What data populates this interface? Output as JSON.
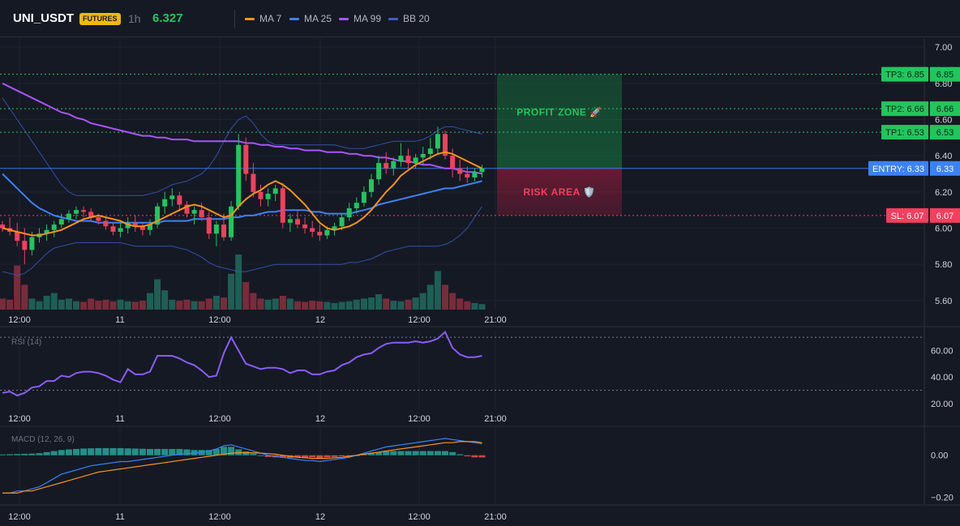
{
  "header": {
    "symbol": "UNI_USDT",
    "badge": "FUTURES",
    "interval": "1h",
    "last_price": "6.327",
    "legend": [
      {
        "label": "MA 7",
        "color": "#f7931a"
      },
      {
        "label": "MA 25",
        "color": "#3b82f6"
      },
      {
        "label": "MA 99",
        "color": "#a855f7"
      },
      {
        "label": "BB 20",
        "color": "#3b5fc4"
      }
    ]
  },
  "colors": {
    "up": "#22c55e",
    "down": "#f43f5e",
    "ma7": "#f7931a",
    "ma25": "#3b82f6",
    "ma99": "#a855f7",
    "bb": "#3b5fc4",
    "rsi": "#8b5cf6",
    "macd": "#3b82f6",
    "signal": "#f7931a",
    "tp": "#22c55e",
    "entry": "#3b82f6",
    "sl": "#f43f5e"
  },
  "time_axis": [
    "12:00",
    "11",
    "12:00",
    "12",
    "12:00",
    "21:00"
  ],
  "price_axis": {
    "ylim": [
      5.55,
      7.05
    ],
    "ticks": [
      "7.00",
      "6.80",
      "6.60",
      "6.40",
      "6.20",
      "6.00",
      "5.80",
      "5.60"
    ]
  },
  "rsi_axis": {
    "title": "RSI (14)",
    "ticks": [
      "60.00",
      "40.00",
      "20.00"
    ]
  },
  "macd_axis": {
    "title": "MACD (12, 26, 9)",
    "ticks": [
      "0.00",
      "−0.20"
    ]
  },
  "zones": {
    "profit_label": "PROFIT ZONE 🚀",
    "risk_label": "RISK AREA 🛡️"
  },
  "levels": [
    {
      "label": "TP3: 6.85",
      "value": 6.85,
      "tag": "6.85",
      "kind": "tp"
    },
    {
      "label": "TP2: 6.66",
      "value": 6.66,
      "tag": "6.66",
      "kind": "tp"
    },
    {
      "label": "TP1: 6.53",
      "value": 6.53,
      "tag": "6.53",
      "kind": "tp"
    },
    {
      "label": "ENTRY: 6.33",
      "value": 6.33,
      "tag": "6.33",
      "kind": "entry"
    },
    {
      "label": "SL: 6.07",
      "value": 6.07,
      "tag": "6.07",
      "kind": "sl"
    }
  ],
  "chart_data": [
    {
      "type": "candlestick",
      "title": "UNI_USDT",
      "x_ticks": [
        "12:00",
        "11",
        "12:00",
        "12",
        "12:00",
        "21:00"
      ],
      "ylim": [
        5.55,
        7.05
      ],
      "ohlc": [
        [
          6.02,
          6.04,
          5.98,
          6.0
        ],
        [
          6.0,
          6.06,
          5.96,
          5.98
        ],
        [
          5.98,
          6.03,
          5.9,
          5.93
        ],
        [
          5.93,
          6.0,
          5.8,
          5.88
        ],
        [
          5.88,
          5.98,
          5.85,
          5.95
        ],
        [
          5.95,
          6.0,
          5.92,
          5.97
        ],
        [
          5.97,
          6.02,
          5.93,
          5.99
        ],
        [
          5.99,
          6.04,
          5.95,
          6.02
        ],
        [
          6.02,
          6.08,
          6.0,
          6.05
        ],
        [
          6.05,
          6.1,
          6.03,
          6.08
        ],
        [
          6.08,
          6.12,
          6.05,
          6.1
        ],
        [
          6.1,
          6.12,
          6.06,
          6.09
        ],
        [
          6.09,
          6.11,
          6.04,
          6.06
        ],
        [
          6.06,
          6.08,
          6.02,
          6.04
        ],
        [
          6.04,
          6.06,
          5.99,
          6.01
        ],
        [
          6.01,
          6.03,
          5.96,
          5.98
        ],
        [
          5.98,
          6.03,
          5.95,
          6.0
        ],
        [
          6.0,
          6.06,
          5.97,
          6.03
        ],
        [
          6.03,
          6.07,
          5.98,
          6.01
        ],
        [
          6.01,
          6.03,
          5.96,
          5.99
        ],
        [
          5.99,
          6.05,
          5.96,
          6.02
        ],
        [
          6.02,
          6.14,
          6.0,
          6.12
        ],
        [
          6.12,
          6.2,
          6.08,
          6.16
        ],
        [
          6.16,
          6.22,
          6.12,
          6.18
        ],
        [
          6.18,
          6.2,
          6.1,
          6.13
        ],
        [
          6.13,
          6.15,
          6.06,
          6.08
        ],
        [
          6.08,
          6.12,
          6.02,
          6.1
        ],
        [
          6.1,
          6.14,
          6.04,
          6.06
        ],
        [
          6.06,
          6.09,
          5.94,
          5.97
        ],
        [
          5.97,
          6.04,
          5.9,
          6.02
        ],
        [
          6.02,
          6.08,
          5.93,
          5.95
        ],
        [
          5.95,
          6.15,
          5.93,
          6.12
        ],
        [
          6.12,
          6.52,
          6.1,
          6.46
        ],
        [
          6.46,
          6.5,
          6.26,
          6.3
        ],
        [
          6.3,
          6.36,
          6.17,
          6.2
        ],
        [
          6.2,
          6.24,
          6.12,
          6.16
        ],
        [
          6.16,
          6.22,
          6.12,
          6.19
        ],
        [
          6.19,
          6.24,
          6.15,
          6.22
        ],
        [
          6.22,
          6.25,
          6.0,
          6.03
        ],
        [
          6.03,
          6.08,
          5.98,
          6.05
        ],
        [
          6.05,
          6.1,
          6.0,
          6.02
        ],
        [
          6.02,
          6.06,
          5.97,
          6.0
        ],
        [
          6.0,
          6.04,
          5.95,
          5.98
        ],
        [
          5.98,
          6.02,
          5.93,
          5.96
        ],
        [
          5.96,
          6.01,
          5.94,
          5.99
        ],
        [
          5.99,
          6.03,
          5.96,
          6.01
        ],
        [
          6.01,
          6.08,
          5.99,
          6.06
        ],
        [
          6.06,
          6.14,
          6.04,
          6.11
        ],
        [
          6.11,
          6.17,
          6.08,
          6.14
        ],
        [
          6.14,
          6.23,
          6.12,
          6.2
        ],
        [
          6.2,
          6.3,
          6.17,
          6.27
        ],
        [
          6.27,
          6.4,
          6.24,
          6.36
        ],
        [
          6.36,
          6.42,
          6.3,
          6.33
        ],
        [
          6.33,
          6.39,
          6.29,
          6.37
        ],
        [
          6.37,
          6.47,
          6.34,
          6.4
        ],
        [
          6.4,
          6.44,
          6.33,
          6.36
        ],
        [
          6.36,
          6.41,
          6.33,
          6.39
        ],
        [
          6.39,
          6.45,
          6.35,
          6.41
        ],
        [
          6.41,
          6.5,
          6.38,
          6.44
        ],
        [
          6.44,
          6.56,
          6.41,
          6.52
        ],
        [
          6.52,
          6.54,
          6.38,
          6.4
        ],
        [
          6.4,
          6.44,
          6.28,
          6.33
        ],
        [
          6.33,
          6.38,
          6.26,
          6.3
        ],
        [
          6.3,
          6.34,
          6.25,
          6.28
        ],
        [
          6.28,
          6.33,
          6.26,
          6.31
        ],
        [
          6.31,
          6.35,
          6.28,
          6.33
        ]
      ],
      "volume": [
        0.2,
        0.18,
        0.8,
        0.45,
        0.2,
        0.15,
        0.25,
        0.3,
        0.18,
        0.2,
        0.15,
        0.14,
        0.2,
        0.16,
        0.18,
        0.15,
        0.18,
        0.15,
        0.14,
        0.16,
        0.3,
        0.55,
        0.35,
        0.18,
        0.16,
        0.18,
        0.15,
        0.15,
        0.2,
        0.25,
        0.22,
        0.65,
        1.0,
        0.5,
        0.3,
        0.2,
        0.18,
        0.2,
        0.25,
        0.2,
        0.15,
        0.14,
        0.16,
        0.15,
        0.14,
        0.12,
        0.14,
        0.15,
        0.18,
        0.2,
        0.22,
        0.28,
        0.2,
        0.16,
        0.15,
        0.18,
        0.22,
        0.3,
        0.45,
        0.7,
        0.45,
        0.3,
        0.2,
        0.15,
        0.12,
        0.1
      ],
      "ma7": [
        6.0,
        5.99,
        5.98,
        5.97,
        5.96,
        5.96,
        5.97,
        5.98,
        5.99,
        6.01,
        6.03,
        6.05,
        6.06,
        6.07,
        6.06,
        6.05,
        6.04,
        6.02,
        6.01,
        6.01,
        6.02,
        6.04,
        6.06,
        6.08,
        6.1,
        6.12,
        6.13,
        6.12,
        6.1,
        6.08,
        6.06,
        6.07,
        6.12,
        6.16,
        6.19,
        6.21,
        6.24,
        6.26,
        6.24,
        6.21,
        6.17,
        6.13,
        6.08,
        6.03,
        6.0,
        5.99,
        6.0,
        6.01,
        6.03,
        6.06,
        6.1,
        6.15,
        6.2,
        6.24,
        6.29,
        6.32,
        6.35,
        6.37,
        6.39,
        6.41,
        6.42,
        6.41,
        6.39,
        6.37,
        6.35,
        6.33
      ],
      "ma25": [
        6.3,
        6.26,
        6.22,
        6.18,
        6.14,
        6.11,
        6.09,
        6.07,
        6.06,
        6.05,
        6.04,
        6.04,
        6.04,
        6.03,
        6.03,
        6.03,
        6.03,
        6.03,
        6.03,
        6.03,
        6.03,
        6.03,
        6.04,
        6.04,
        6.04,
        6.04,
        6.05,
        6.05,
        6.05,
        6.05,
        6.05,
        6.06,
        6.06,
        6.07,
        6.07,
        6.08,
        6.09,
        6.09,
        6.1,
        6.1,
        6.1,
        6.1,
        6.09,
        6.09,
        6.08,
        6.08,
        6.08,
        6.08,
        6.09,
        6.1,
        6.11,
        6.13,
        6.14,
        6.15,
        6.16,
        6.17,
        6.18,
        6.19,
        6.2,
        6.21,
        6.22,
        6.22,
        6.23,
        6.24,
        6.25,
        6.26
      ],
      "ma99": [
        6.8,
        6.78,
        6.76,
        6.74,
        6.72,
        6.7,
        6.68,
        6.66,
        6.64,
        6.63,
        6.61,
        6.6,
        6.58,
        6.57,
        6.56,
        6.55,
        6.54,
        6.53,
        6.52,
        6.51,
        6.51,
        6.5,
        6.5,
        6.49,
        6.49,
        6.49,
        6.48,
        6.48,
        6.48,
        6.48,
        6.48,
        6.48,
        6.48,
        6.47,
        6.47,
        6.46,
        6.46,
        6.45,
        6.45,
        6.44,
        6.44,
        6.43,
        6.43,
        6.43,
        6.42,
        6.42,
        6.42,
        6.41,
        6.41,
        6.4,
        6.4,
        6.39,
        6.39,
        6.38,
        6.37,
        6.37,
        6.36,
        6.35,
        6.35,
        6.34,
        6.33,
        6.33,
        6.32,
        6.31,
        6.31,
        6.3
      ],
      "bb_upper": [
        6.72,
        6.66,
        6.6,
        6.54,
        6.48,
        6.42,
        6.36,
        6.3,
        6.24,
        6.2,
        6.18,
        6.18,
        6.18,
        6.18,
        6.18,
        6.18,
        6.18,
        6.18,
        6.18,
        6.18,
        6.19,
        6.2,
        6.22,
        6.24,
        6.25,
        6.26,
        6.28,
        6.3,
        6.34,
        6.4,
        6.48,
        6.55,
        6.6,
        6.62,
        6.58,
        6.52,
        6.48,
        6.46,
        6.46,
        6.46,
        6.46,
        6.46,
        6.46,
        6.46,
        6.46,
        6.46,
        6.45,
        6.44,
        6.44,
        6.44,
        6.45,
        6.46,
        6.47,
        6.48,
        6.48,
        6.48,
        6.48,
        6.49,
        6.51,
        6.54,
        6.56,
        6.56,
        6.55,
        6.54,
        6.53,
        6.52
      ],
      "bb_lower": [
        5.76,
        5.75,
        5.74,
        5.75,
        5.78,
        5.82,
        5.86,
        5.89,
        5.9,
        5.91,
        5.92,
        5.92,
        5.92,
        5.92,
        5.92,
        5.92,
        5.92,
        5.91,
        5.9,
        5.9,
        5.9,
        5.9,
        5.9,
        5.9,
        5.89,
        5.88,
        5.86,
        5.84,
        5.81,
        5.79,
        5.78,
        5.77,
        5.76,
        5.76,
        5.77,
        5.78,
        5.79,
        5.8,
        5.8,
        5.8,
        5.8,
        5.8,
        5.8,
        5.8,
        5.8,
        5.8,
        5.8,
        5.81,
        5.81,
        5.82,
        5.83,
        5.85,
        5.87,
        5.88,
        5.89,
        5.9,
        5.9,
        5.9,
        5.9,
        5.9,
        5.91,
        5.93,
        5.96,
        6.0,
        6.06,
        6.12
      ]
    },
    {
      "type": "line",
      "title": "RSI (14)",
      "ylim": [
        15,
        75
      ],
      "levels": [
        70,
        30
      ],
      "values": [
        28,
        29,
        26,
        28,
        32,
        33,
        37,
        37,
        41,
        40,
        43,
        44,
        44,
        43,
        41,
        38,
        36,
        46,
        42,
        42,
        44,
        56,
        56,
        56,
        54,
        51,
        49,
        45,
        40,
        41,
        58,
        70,
        60,
        50,
        48,
        46,
        47,
        47,
        46,
        43,
        45,
        45,
        42,
        42,
        44,
        45,
        49,
        51,
        55,
        57,
        58,
        62,
        65,
        66,
        66,
        66,
        67,
        66,
        67,
        69,
        74,
        62,
        57,
        55,
        55,
        56
      ]
    },
    {
      "type": "line",
      "title": "MACD (12, 26, 9)",
      "ylim": [
        -0.24,
        0.13
      ],
      "macd": [
        -0.18,
        -0.18,
        -0.17,
        -0.17,
        -0.16,
        -0.15,
        -0.13,
        -0.11,
        -0.09,
        -0.08,
        -0.07,
        -0.06,
        -0.05,
        -0.045,
        -0.04,
        -0.035,
        -0.03,
        -0.03,
        -0.025,
        -0.02,
        -0.015,
        -0.01,
        -0.005,
        0.0,
        0.005,
        0.008,
        0.01,
        0.015,
        0.02,
        0.03,
        0.045,
        0.05,
        0.04,
        0.03,
        0.02,
        0.01,
        0.0,
        -0.005,
        -0.01,
        -0.015,
        -0.02,
        -0.025,
        -0.025,
        -0.03,
        -0.025,
        -0.02,
        -0.015,
        -0.01,
        0.0,
        0.01,
        0.02,
        0.03,
        0.04,
        0.045,
        0.05,
        0.055,
        0.06,
        0.065,
        0.07,
        0.075,
        0.08,
        0.075,
        0.07,
        0.065,
        0.06,
        0.055
      ],
      "signal": [
        -0.18,
        -0.18,
        -0.18,
        -0.17,
        -0.17,
        -0.16,
        -0.15,
        -0.14,
        -0.13,
        -0.12,
        -0.11,
        -0.1,
        -0.09,
        -0.08,
        -0.075,
        -0.07,
        -0.065,
        -0.06,
        -0.055,
        -0.05,
        -0.045,
        -0.04,
        -0.035,
        -0.03,
        -0.025,
        -0.02,
        -0.015,
        -0.01,
        -0.005,
        0.0,
        0.005,
        0.01,
        0.012,
        0.012,
        0.012,
        0.01,
        0.008,
        0.005,
        0.0,
        -0.005,
        -0.01,
        -0.012,
        -0.015,
        -0.015,
        -0.015,
        -0.012,
        -0.01,
        -0.005,
        0.0,
        0.005,
        0.01,
        0.015,
        0.02,
        0.025,
        0.03,
        0.035,
        0.04,
        0.045,
        0.05,
        0.055,
        0.06,
        0.06,
        0.065,
        0.065,
        0.065,
        0.06
      ],
      "histogram": [
        0.004,
        0.005,
        0.006,
        0.007,
        0.008,
        0.01,
        0.015,
        0.02,
        0.025,
        0.028,
        0.03,
        0.032,
        0.033,
        0.034,
        0.034,
        0.034,
        0.034,
        0.033,
        0.032,
        0.031,
        0.03,
        0.03,
        0.03,
        0.03,
        0.03,
        0.028,
        0.025,
        0.025,
        0.025,
        0.03,
        0.04,
        0.04,
        0.028,
        0.018,
        0.008,
        0.0,
        -0.008,
        -0.01,
        -0.012,
        -0.012,
        -0.01,
        -0.012,
        -0.01,
        -0.015,
        -0.01,
        -0.008,
        -0.005,
        -0.005,
        0.0,
        0.005,
        0.01,
        0.015,
        0.02,
        0.02,
        0.02,
        0.02,
        0.02,
        0.02,
        0.02,
        0.02,
        0.02,
        0.015,
        0.005,
        -0.005,
        -0.01,
        -0.01
      ]
    }
  ]
}
